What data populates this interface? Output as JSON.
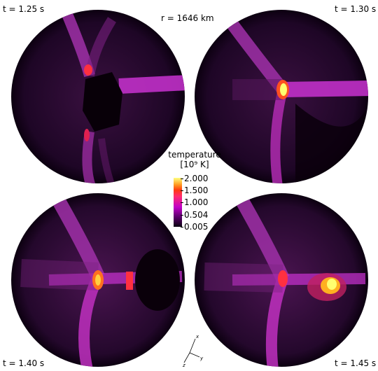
{
  "labels": {
    "t1": "t = 1.25 s",
    "t2": "t = 1.30 s",
    "t3": "t = 1.40 s",
    "t4": "t = 1.45 s",
    "radius": "r = 1646 km"
  },
  "colorbar": {
    "title": "temperature",
    "unit": "[10⁹ K]",
    "ticks": [
      "2.000",
      "1.500",
      "1.000",
      "0.504",
      "0.005"
    ]
  },
  "axes_triad": {
    "x": "x",
    "y": "y",
    "z": "z"
  },
  "colors": {
    "background": "#ffffff",
    "sphere_dark": "#12001a",
    "jet": "#d020d0",
    "hot": "#ffff60"
  }
}
